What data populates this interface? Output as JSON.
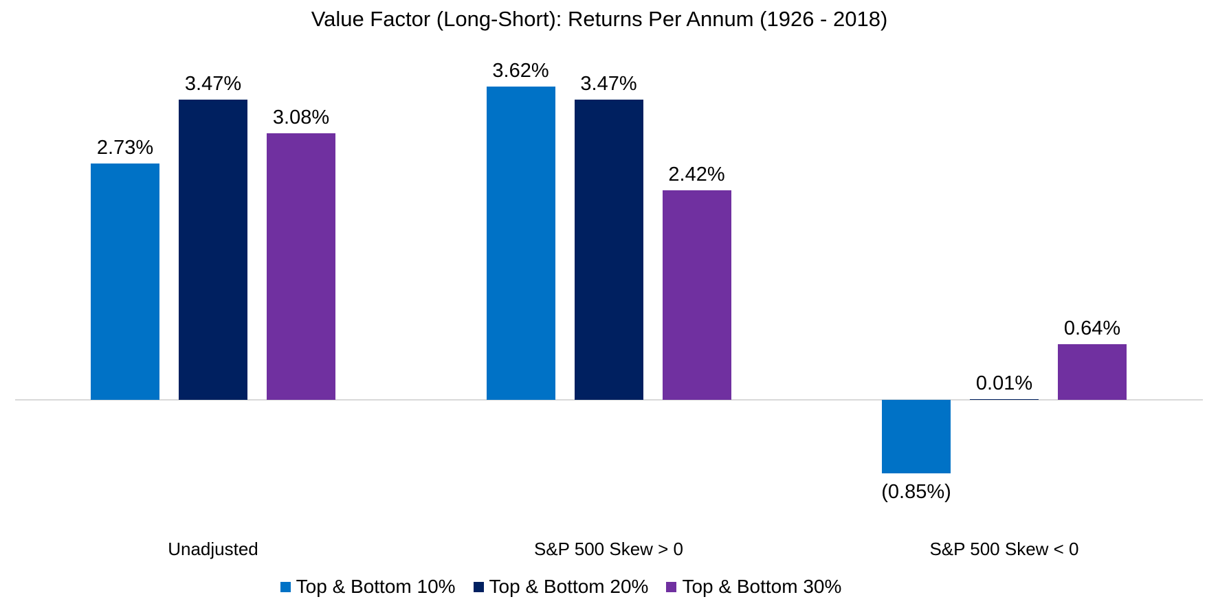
{
  "chart_data": {
    "type": "bar",
    "title": "Value Factor (Long-Short): Returns Per Annum (1926 - 2018)",
    "categories": [
      "Unadjusted",
      "S&P 500 Skew > 0",
      "S&P 500 Skew < 0"
    ],
    "series": [
      {
        "name": "Top & Bottom 10%",
        "color": "#0072C6",
        "values": [
          2.73,
          3.62,
          -0.85
        ],
        "labels": [
          "2.73%",
          "3.62%",
          "(0.85%)"
        ]
      },
      {
        "name": "Top & Bottom 20%",
        "color": "#002060",
        "values": [
          3.47,
          3.47,
          0.01
        ],
        "labels": [
          "3.47%",
          "3.47%",
          "0.01%"
        ]
      },
      {
        "name": "Top & Bottom 30%",
        "color": "#7030A0",
        "values": [
          3.08,
          2.42,
          0.64
        ],
        "labels": [
          "3.08%",
          "2.42%",
          "0.64%"
        ]
      }
    ],
    "xlabel": "",
    "ylabel": "",
    "ylim": [
      -1.0,
      3.72
    ],
    "grid": false,
    "value_labels_shown": true,
    "negative_format": "parentheses",
    "legend_position": "bottom",
    "axis_line_color": "#D9D9D9",
    "text_color": "#000000",
    "background_color": "#FFFFFF"
  }
}
